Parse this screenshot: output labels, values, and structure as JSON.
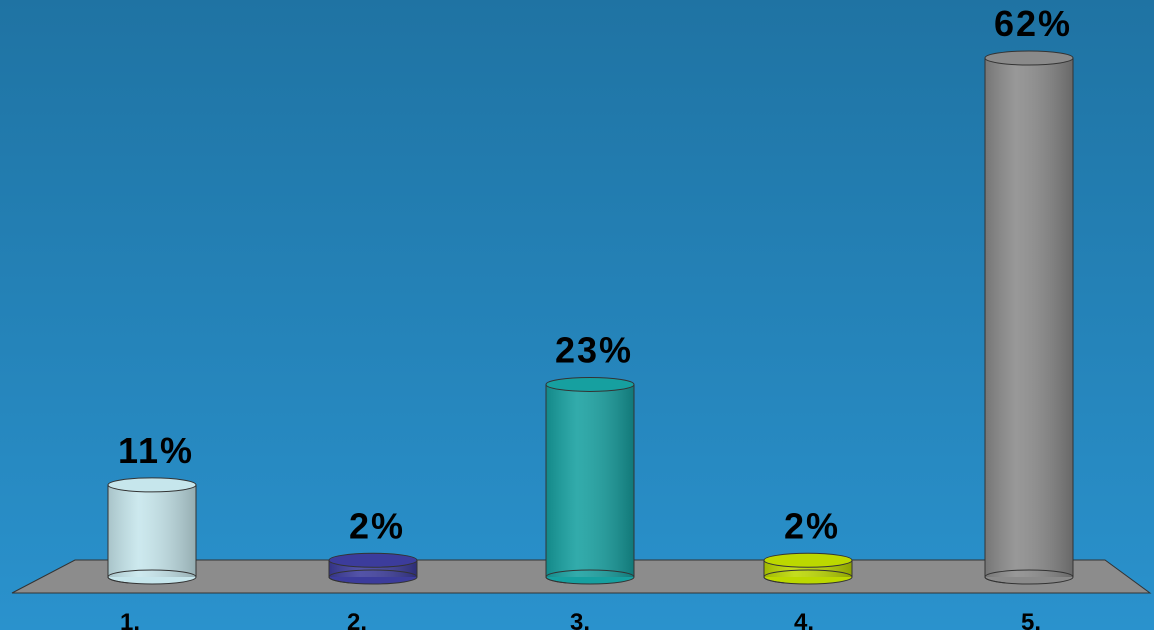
{
  "chart_data": {
    "type": "bar",
    "categories": [
      "1.",
      "2.",
      "3.",
      "4.",
      "5."
    ],
    "values": [
      11,
      2,
      23,
      2,
      62
    ],
    "value_labels": [
      "11%",
      "2%",
      "23%",
      "2%",
      "62%"
    ],
    "colors": [
      "#c6e6ec",
      "#3c3c9c",
      "#16a0a0",
      "#bcd800",
      "#8a8a8a"
    ]
  }
}
